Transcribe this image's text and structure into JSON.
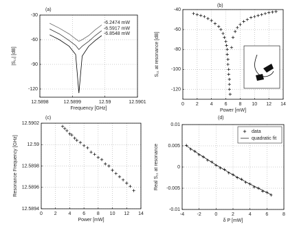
{
  "chart_data": [
    {
      "type": "line",
      "title": "(a)",
      "x_label": "Frequency [GHz]",
      "y_label": "|S₁₁| [dB]",
      "x": [
        12.58983,
        12.58986,
        12.58989,
        12.58991,
        12.58992,
        12.58993,
        12.58995,
        12.58997,
        12.58999
      ],
      "series": [
        {
          "name": "-6.2474 mW",
          "color": "#666666",
          "values": [
            -40,
            -46,
            -53,
            -59,
            -62,
            -60,
            -55,
            -48,
            -42
          ]
        },
        {
          "name": "-6.5917 mW",
          "color": "#333333",
          "values": [
            -47,
            -53,
            -61,
            -67,
            -72,
            -68,
            -62,
            -55,
            -49
          ]
        },
        {
          "name": "-6.8548 mW",
          "color": "#000000",
          "values": [
            -54,
            -60,
            -68,
            -78,
            -125,
            -80,
            -68,
            -61,
            -55
          ]
        }
      ],
      "xlim": [
        12.5898,
        12.5901
      ],
      "xticks": [
        12.5898,
        12.5899,
        12.59,
        12.5901
      ],
      "ylim": [
        -130,
        -30
      ],
      "yticks": [
        -30,
        -60,
        -90,
        -120
      ],
      "grid": true
    },
    {
      "type": "scatter",
      "title": "(b)",
      "x_label": "Power [mW]",
      "y_label": "S₁₁ at resonance [dB]",
      "color": "#000000",
      "x": [
        1.5,
        2,
        2.5,
        3,
        3.5,
        4,
        4.5,
        5,
        5.3,
        5.6,
        5.8,
        6,
        6.1,
        6.2,
        6.2,
        6.3,
        6.3,
        6.4,
        6.4,
        6.5,
        6.5,
        6.5,
        6.6,
        6.8,
        7,
        7.3,
        7.6,
        8,
        8.5,
        9,
        9.5,
        10,
        10.5,
        11,
        11.5,
        12,
        12.5,
        13
      ],
      "values": [
        -44,
        -45,
        -46,
        -47,
        -49,
        -51,
        -54,
        -57,
        -60,
        -64,
        -68,
        -72,
        -76,
        -80,
        -85,
        -90,
        -95,
        -100,
        -105,
        -110,
        -115,
        -120,
        -125,
        -78,
        -68,
        -62,
        -58,
        -55,
        -52,
        -50,
        -48,
        -47,
        -46,
        -45,
        -44,
        -43,
        -42.5,
        -42
      ],
      "xlim": [
        0,
        14
      ],
      "xticks": [
        0,
        2,
        4,
        6,
        8,
        10,
        12,
        14
      ],
      "ylim": [
        -130,
        -40
      ],
      "yticks": [
        -40,
        -60,
        -80,
        -100,
        -120
      ],
      "grid": true
    },
    {
      "type": "scatter",
      "title": "(c)",
      "x_label": "Power [mW]",
      "y_label": "Resonance Frequency [GHz]",
      "color": "#000000",
      "x": [
        3,
        3.3,
        3.6,
        4,
        4.3,
        4.7,
        5,
        5.5,
        6,
        6.5,
        7,
        7.5,
        8,
        8.5,
        9,
        9.5,
        10,
        10.5,
        11,
        11.5,
        12,
        12.5,
        13
      ],
      "values": [
        12.59017,
        12.59015,
        12.59013,
        12.5901,
        12.59009,
        12.59006,
        12.59004,
        12.59002,
        12.58999,
        12.58997,
        12.58993,
        12.58991,
        12.58988,
        12.58986,
        12.58982,
        12.5898,
        12.58976,
        12.58973,
        12.5897,
        12.58967,
        12.58964,
        12.58961,
        12.58957
      ],
      "xlim": [
        0,
        14
      ],
      "xticks": [
        0,
        2,
        4,
        6,
        8,
        10,
        12,
        14
      ],
      "ylim": [
        12.5894,
        12.5902
      ],
      "yticks": [
        12.5894,
        12.5896,
        12.5898,
        12.59,
        12.5902
      ],
      "grid": true
    },
    {
      "type": "scatter",
      "title": "(d)",
      "x_label": "δ P [mW]",
      "y_label": "Real S₁₁ at resonance",
      "legend": "upper right",
      "series": [
        {
          "name": "data",
          "type": "scatter",
          "color": "#000000",
          "x": [
            -3.5,
            -3,
            -2.5,
            -2,
            -1.5,
            -1,
            -0.5,
            0,
            0.5,
            1,
            1.5,
            2,
            2.5,
            3,
            3.5,
            4,
            4.5,
            5,
            5.5,
            6,
            6.5
          ],
          "values": [
            0.0051,
            0.0042,
            0.0037,
            0.0029,
            0.0024,
            0.0016,
            0.0012,
            0.0004,
            -0.0002,
            -0.0006,
            -0.0014,
            -0.0018,
            -0.0025,
            -0.0029,
            -0.0036,
            -0.004,
            -0.0047,
            -0.005,
            -0.0057,
            -0.006,
            -0.0066
          ]
        },
        {
          "name": "quadratic fit",
          "type": "line",
          "color": "#000000",
          "x": [
            -3.5,
            -2,
            0,
            2,
            4,
            6.5
          ],
          "values": [
            0.005,
            0.00301,
            0.0005,
            -0.00184,
            -0.00402,
            -0.0065
          ]
        }
      ],
      "xlim": [
        -4,
        8
      ],
      "xticks": [
        -4,
        -2,
        0,
        2,
        4,
        6,
        8
      ],
      "ylim": [
        -0.01,
        0.01
      ],
      "yticks": [
        -0.01,
        -0.005,
        0,
        0.005,
        0.01
      ],
      "grid": true
    }
  ]
}
